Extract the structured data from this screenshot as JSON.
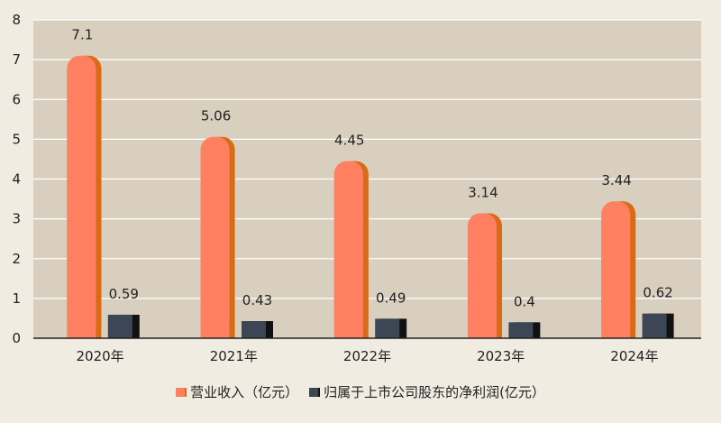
{
  "chart_data": {
    "type": "bar",
    "categories": [
      "2020年",
      "2021年",
      "2022年",
      "2023年",
      "2024年"
    ],
    "series": [
      {
        "name": "营业收入（亿元）",
        "values": [
          7.1,
          5.06,
          4.45,
          3.14,
          3.44
        ],
        "color": "#ff8060",
        "shade": "#d96a16"
      },
      {
        "name": "归属于上市公司股东的净利润(亿元）",
        "values": [
          0.59,
          0.43,
          0.49,
          0.4,
          0.62
        ],
        "color": "#3d4654",
        "shade": "#111111"
      }
    ],
    "data_labels": [
      [
        "7.1",
        "5.06",
        "4.45",
        "3.14",
        "3.44"
      ],
      [
        "0.59",
        "0.43",
        "0.49",
        "0.4",
        "0.62"
      ]
    ],
    "yticks": [
      "0",
      "1",
      "2",
      "3",
      "4",
      "5",
      "6",
      "7",
      "8"
    ],
    "ylim": [
      0,
      8
    ],
    "grid": true,
    "legend_position": "bottom",
    "plot_background": "#d9cfbf"
  }
}
